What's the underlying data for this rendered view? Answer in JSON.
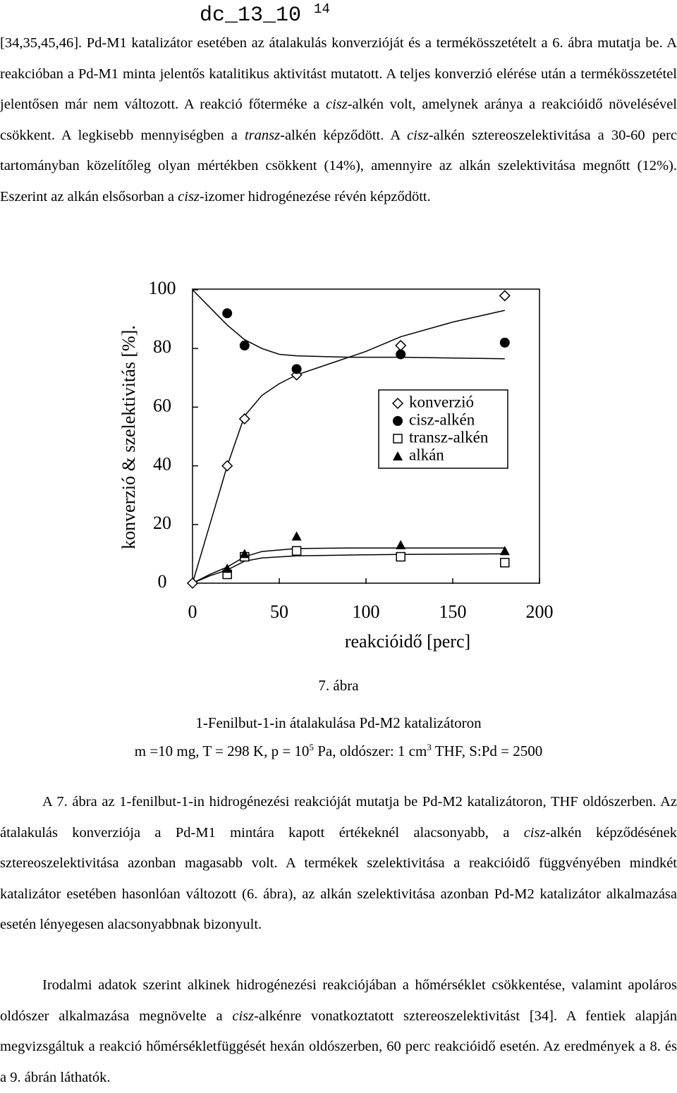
{
  "header": {
    "code": "dc_13_10",
    "page": "14"
  },
  "paragraphs": [
    {
      "runs": [
        "[34,35,45,46]. Pd-M1 katalizátor esetében az átalakulás konverzióját és a termékösszetételt a 6. ábra mutatja be. A reakcióban a Pd-M1 minta jelentős katalitikus aktivitást mutatott. A teljes konverzió elérése után a termékösszetétel jelentősen már nem változott. A reakció főterméke a ",
        "cisz",
        "-alkén volt, amelynek aránya a reakcióidő növelésével csökkent. A legkisebb mennyiségben a ",
        "transz",
        "-alkén képződött. A ",
        "cisz",
        "-alkén sztereoszelektivitása a 30-60 perc tartományban közelítőleg olyan mértékben csökkent (14%), amennyire az alkán szelektivitása megnőtt (12%). Eszerint az alkán elsősorban a ",
        "cisz",
        "-izomer hidrogénezése révén képződött."
      ]
    },
    {
      "runs": [
        "A 7. ábra az 1-fenilbut-1-in hidrogénezési reakcióját mutatja be Pd-M2 katalizátoron, THF oldószerben. Az átalakulás konverziója a Pd-M1 mintára kapott értékeknél alacsonyabb, a ",
        "cisz",
        "-alkén képződésének sztereoszelektivitása azonban magasabb volt. A termékek szelektivitása a reakcióidő függvényében mindkét katalizátor esetében hasonlóan változott (6. ábra), az alkán szelektivitása azonban Pd-M2 katalizátor alkalmazása esetén lényegesen alacsonyabbnak bizonyult."
      ]
    },
    {
      "runs": [
        "Irodalmi adatok szerint alkinek hidrogénezési reakciójában a hőmérséklet csökkentése, valamint apoláros oldószer alkalmazása megnövelte a ",
        "cisz",
        "-alkénre vonatkoztatott sztereoszelektivitást [34]. A fentiek alapján megvizsgáltuk a reakció hőmérsékletfüggését hexán oldószerben, 60 perc reakcióidő esetén. Az eredmények a 8. és a 9. ábrán láthatók."
      ]
    }
  ],
  "figure": {
    "label": "7. ábra",
    "caption": "1-Fenilbut-1-in átalakulása Pd-M2 katalizátoron",
    "conditions": [
      "m =10 mg, T = 298 K, p = 10",
      "5",
      " Pa, oldószer: 1 cm",
      "3",
      " THF, S:Pd = 2500"
    ]
  },
  "chart_data": {
    "type": "scatter",
    "x_label": "reakcióidő [perc]",
    "y_label": "konverzió & szelektivitás [%].",
    "xlim": [
      0,
      200
    ],
    "ylim": [
      0,
      100
    ],
    "xticks": [
      0,
      50,
      100,
      150,
      200
    ],
    "yticks": [
      0,
      20,
      40,
      60,
      80,
      100
    ],
    "series": [
      {
        "name": "konverzió",
        "marker": "diamond",
        "color": "#000000",
        "x": [
          0,
          20,
          30,
          60,
          120,
          180
        ],
        "values": [
          0,
          40,
          56,
          71,
          81,
          98
        ]
      },
      {
        "name": "cisz-alkén",
        "marker": "circle",
        "color": "#000000",
        "x": [
          20,
          30,
          60,
          120,
          180
        ],
        "values": [
          92,
          81,
          73,
          78,
          82
        ]
      },
      {
        "name": "transz-alkén",
        "marker": "square",
        "color": "#000000",
        "x": [
          20,
          30,
          60,
          120,
          180
        ],
        "values": [
          3,
          9,
          11,
          9,
          7
        ]
      },
      {
        "name": "alkán",
        "marker": "triangle",
        "color": "#000000",
        "x": [
          20,
          30,
          60,
          120,
          180
        ],
        "values": [
          5,
          10,
          16,
          13,
          11
        ]
      }
    ],
    "fits": [
      {
        "x": [
          0,
          10,
          20,
          30,
          40,
          50,
          60,
          80,
          100,
          120,
          150,
          180
        ],
        "values": [
          0,
          20,
          40,
          57,
          64,
          68,
          71,
          75,
          79,
          84,
          89,
          93
        ]
      },
      {
        "x": [
          0,
          10,
          20,
          30,
          40,
          50,
          60,
          90,
          120,
          180
        ],
        "values": [
          100,
          94,
          88,
          83,
          80,
          78,
          77.5,
          77,
          77,
          76.5
        ]
      },
      {
        "x": [
          0,
          10,
          20,
          30,
          40,
          60,
          90,
          120,
          180
        ],
        "values": [
          0,
          3,
          5.5,
          9,
          10.8,
          11.8,
          12,
          12,
          12
        ]
      },
      {
        "x": [
          0,
          10,
          20,
          30,
          40,
          60,
          90,
          120,
          180
        ],
        "values": [
          0,
          2.5,
          4.5,
          7.5,
          8.6,
          9.3,
          9.6,
          9.8,
          10
        ]
      }
    ]
  }
}
